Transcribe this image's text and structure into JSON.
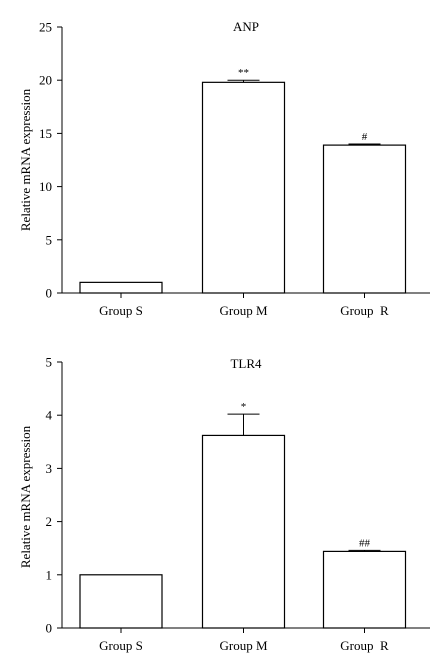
{
  "chart_data": [
    {
      "type": "bar",
      "title": "ANP",
      "xlabel": "",
      "ylabel": "Relative mRNA expression",
      "categories": [
        "Group S",
        "Group M",
        "Group  R"
      ],
      "values": [
        1.0,
        19.8,
        13.9
      ],
      "error": [
        0,
        0.2,
        0.1
      ],
      "annotations": [
        "",
        "**",
        "#"
      ],
      "ylim": [
        0,
        25
      ],
      "yticks": [
        0,
        5,
        10,
        15,
        20,
        25
      ],
      "grid": false,
      "bar_color": "#ffffff",
      "edge_color": "#000000"
    },
    {
      "type": "bar",
      "title": "TLR4",
      "xlabel": "",
      "ylabel": "Relative mRNA expression",
      "categories": [
        "Group S",
        "Group M",
        "Group  R"
      ],
      "values": [
        1.0,
        3.62,
        1.44
      ],
      "error": [
        0,
        0.4,
        0.02
      ],
      "annotations": [
        "",
        "*",
        "##"
      ],
      "ylim": [
        0,
        5
      ],
      "yticks": [
        0,
        1,
        2,
        3,
        4,
        5
      ],
      "grid": false,
      "bar_color": "#ffffff",
      "edge_color": "#000000"
    }
  ]
}
